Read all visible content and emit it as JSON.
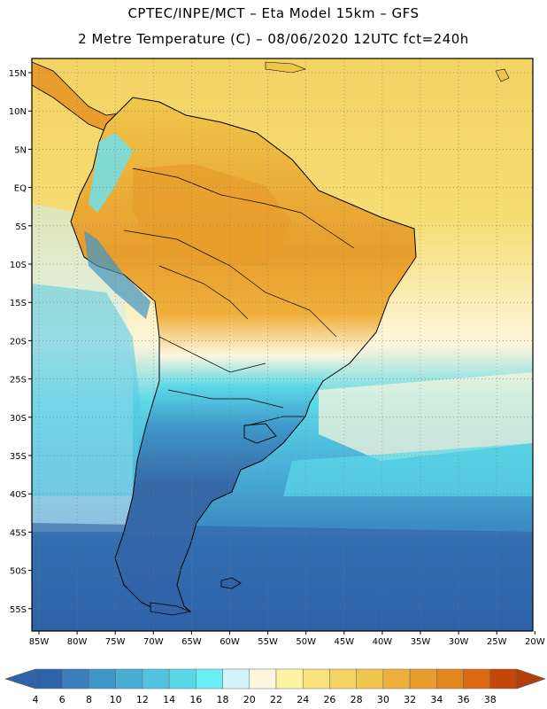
{
  "header": {
    "title_line1": "CPTEC/INPE/MCT  –   Eta Model 15km  –  GFS",
    "title_line2": "2 Metre Temperature (C) – 08/06/2020 12UTC fct=240h"
  },
  "map": {
    "lat_labels": [
      "15N",
      "10N",
      "5N",
      "EQ",
      "5S",
      "10S",
      "15S",
      "20S",
      "25S",
      "30S",
      "35S",
      "40S",
      "45S",
      "50S",
      "55S"
    ],
    "lon_labels": [
      "85W",
      "80W",
      "75W",
      "70W",
      "65W",
      "60W",
      "55W",
      "50W",
      "45W",
      "40W",
      "35W",
      "30W",
      "25W",
      "20W"
    ],
    "colors": {
      "ocean_far": "#2f63a8",
      "ocean_mid": "#3d8fc9",
      "ocean_near": "#57c9e0",
      "ocean_warm": "#59e2ee",
      "ocean_light": "#cdeff7",
      "ocean_cream": "#fdf6dc",
      "tropical_sea": "#f4d363",
      "land_warm": "#eeb03a",
      "land_hot": "#e89d2c",
      "land_south": "#3669a7",
      "andes": "#6fe0ec"
    }
  },
  "colorbar": {
    "labels": [
      "4",
      "6",
      "8",
      "10",
      "12",
      "14",
      "16",
      "18",
      "20",
      "22",
      "24",
      "26",
      "28",
      "30",
      "32",
      "34",
      "36",
      "38"
    ],
    "colors": [
      "#2f63a8",
      "#3a7fbc",
      "#3f96c9",
      "#49aed6",
      "#52c3df",
      "#5bd8e8",
      "#68f0f5",
      "#d2f5fb",
      "#fdf6dc",
      "#fcf3a3",
      "#f9e27c",
      "#f4d363",
      "#efc64b",
      "#eeb03a",
      "#e89d2c",
      "#e3861e",
      "#d96a13",
      "#c4470a"
    ],
    "low_color": "#2f63a8",
    "high_color": "#b53f0a"
  }
}
